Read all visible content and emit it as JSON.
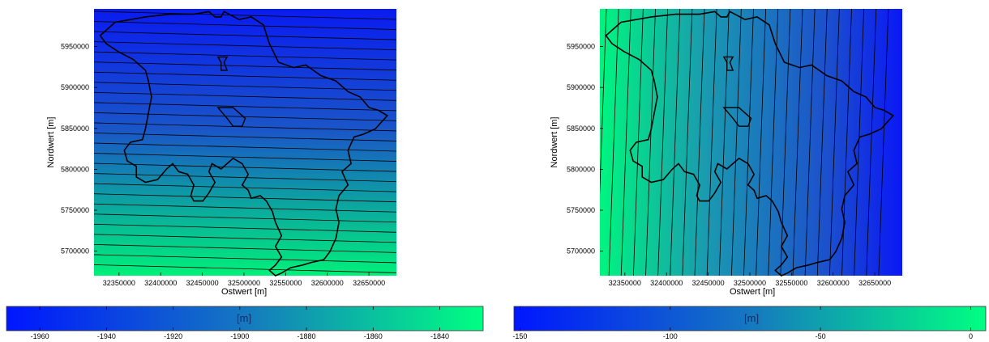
{
  "chart_data": [
    {
      "type": "heatmap",
      "title": "",
      "xlabel": "Ostwert [m]",
      "ylabel": "Nordwert [m]",
      "xlim": [
        32320000,
        32683000
      ],
      "ylim": [
        5670000,
        5996000
      ],
      "xticks": [
        32350000,
        32400000,
        32450000,
        32500000,
        32550000,
        32600000,
        32650000
      ],
      "xtick_labels": [
        "32350000",
        "32400000",
        "32450000",
        "32500000",
        "32550000",
        "32600000",
        "32650000"
      ],
      "yticks": [
        5700000,
        5750000,
        5800000,
        5850000,
        5900000,
        5950000
      ],
      "ytick_labels": [
        "5700000",
        "5750000",
        "5800000",
        "5850000",
        "5900000",
        "5950000"
      ],
      "gradient_direction": "north-south",
      "contour_count": 26,
      "colorbar": {
        "title": "[m]",
        "range": [
          -1970,
          -1827
        ],
        "ticks": [
          -1960,
          -1940,
          -1920,
          -1900,
          -1880,
          -1860,
          -1840
        ],
        "tick_labels": [
          "-1960",
          "-1940",
          "-1920",
          "-1900",
          "-1880",
          "-1860",
          "-1840"
        ],
        "low_color": "#0016ff",
        "high_color": "#00ff82"
      }
    },
    {
      "type": "heatmap",
      "title": "",
      "xlabel": "Ostwert [m]",
      "ylabel": "Nordwert [m]",
      "xlim": [
        32320000,
        32683000
      ],
      "ylim": [
        5670000,
        5996000
      ],
      "xticks": [
        32350000,
        32400000,
        32450000,
        32500000,
        32550000,
        32600000,
        32650000
      ],
      "xtick_labels": [
        "32350000",
        "32400000",
        "32450000",
        "32500000",
        "32550000",
        "32600000",
        "32650000"
      ],
      "yticks": [
        5700000,
        5750000,
        5800000,
        5850000,
        5900000,
        5950000
      ],
      "ytick_labels": [
        "5700000",
        "5750000",
        "5800000",
        "5850000",
        "5900000",
        "5950000"
      ],
      "gradient_direction": "west-east",
      "contour_count": 24,
      "colorbar": {
        "title": "[m]",
        "range": [
          -152,
          5
        ],
        "ticks": [
          -150,
          -100,
          -50,
          0
        ],
        "tick_labels": [
          "-150",
          "-100",
          "-50",
          "0"
        ],
        "low_color": "#0016ff",
        "high_color": "#00ff82"
      }
    }
  ]
}
